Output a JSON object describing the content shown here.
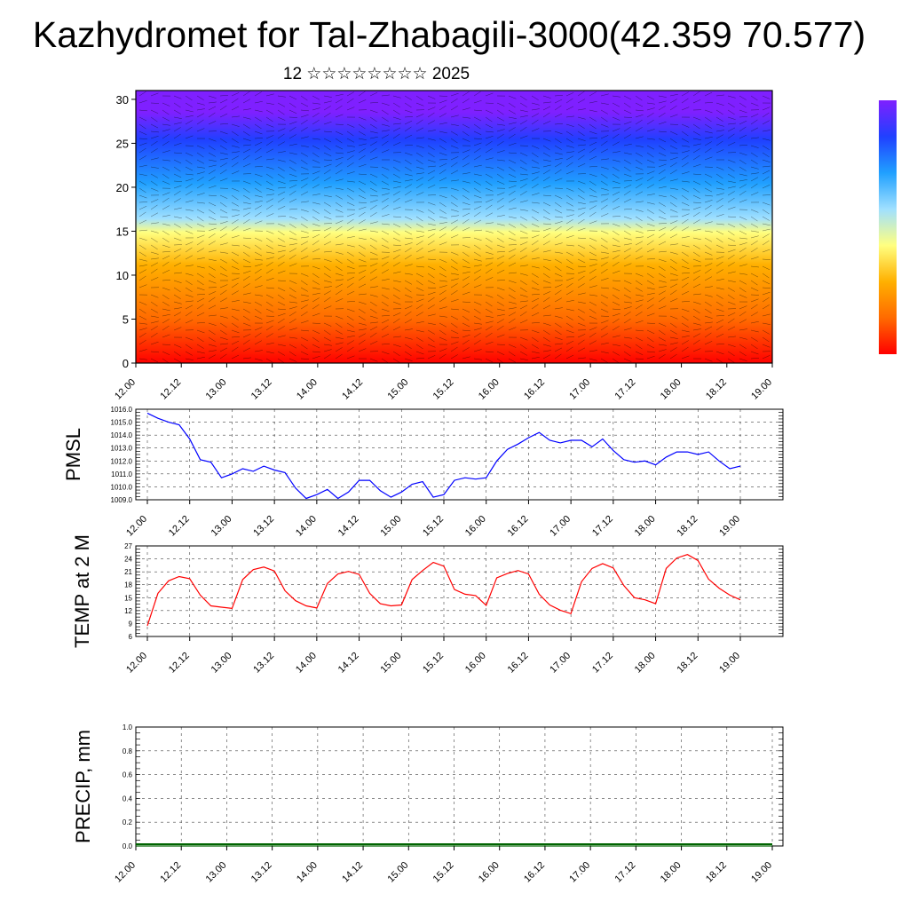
{
  "header": {
    "title": "Kazhydromet for Tal-Zhabagili-3000(42.359 70.577)",
    "subtitle": "12 ☆☆☆☆☆☆☆☆ 2025"
  },
  "colors": {
    "pmsl_line": "#0000ff",
    "temp_line": "#ff0000",
    "precip_baseline": "#006400",
    "colorbar": [
      "#ff0000",
      "#ff6a00",
      "#ffb000",
      "#ffff80",
      "#a0e0ff",
      "#20a0ff",
      "#2040ff",
      "#7f20ff"
    ]
  },
  "chart_data": [
    {
      "type": "heatmap",
      "name": "vertical cross-section with wind barbs",
      "y_ticks": [
        0,
        5,
        10,
        15,
        20,
        25,
        30
      ],
      "ylim": [
        0,
        31
      ],
      "x_tick_labels": [
        "12.00",
        "12.12",
        "13.00",
        "13.12",
        "14.00",
        "14.12",
        "15.00",
        "15.12",
        "16.00",
        "16.12",
        "17.00",
        "17.12",
        "18.00",
        "18.12",
        "19.00"
      ],
      "color_levels_bottom_to_top": [
        "red",
        "orange-red",
        "orange",
        "yellow",
        "light-blue",
        "sky-blue",
        "blue",
        "violet"
      ],
      "colorbar": true
    },
    {
      "type": "line",
      "ylabel": "PMSL",
      "ylim": [
        1009.0,
        1016.0
      ],
      "y_tick_labels": [
        "1009.0",
        "1010.0",
        "1011.0",
        "1012.0",
        "1013.0",
        "1014.0",
        "1015.0",
        "1016.0"
      ],
      "x_tick_labels": [
        "12.00",
        "12.12",
        "13.00",
        "13.12",
        "14.00",
        "14.12",
        "15.00",
        "15.12",
        "16.00",
        "16.12",
        "17.00",
        "17.12",
        "18.00",
        "18.12",
        "19.00"
      ],
      "values": [
        1015.7,
        1015.3,
        1015.0,
        1014.8,
        1013.7,
        1012.1,
        1011.9,
        1010.7,
        1011.0,
        1011.4,
        1011.2,
        1011.6,
        1011.3,
        1011.1,
        1009.9,
        1009.1,
        1009.4,
        1009.8,
        1009.1,
        1009.6,
        1010.5,
        1010.5,
        1009.7,
        1009.2,
        1009.6,
        1010.2,
        1010.4,
        1009.2,
        1009.4,
        1010.5,
        1010.7,
        1010.6,
        1010.7,
        1012.0,
        1012.9,
        1013.3,
        1013.8,
        1014.2,
        1013.6,
        1013.4,
        1013.6,
        1013.6,
        1013.1,
        1013.7,
        1012.8,
        1012.1,
        1011.9,
        1012.0,
        1011.7,
        1012.3,
        1012.7,
        1012.7,
        1012.5,
        1012.7,
        1012.0,
        1011.4,
        1011.6
      ]
    },
    {
      "type": "line",
      "ylabel": "TEMP at 2 M",
      "ylim": [
        6,
        27
      ],
      "y_tick_labels": [
        "6",
        "9",
        "12",
        "15",
        "18",
        "21",
        "24",
        "27"
      ],
      "x_tick_labels": [
        "12.00",
        "12.12",
        "13.00",
        "13.12",
        "14.00",
        "14.12",
        "15.00",
        "15.12",
        "16.00",
        "16.12",
        "17.00",
        "17.12",
        "18.00",
        "18.12",
        "19.00"
      ],
      "values": [
        8.5,
        16.0,
        18.9,
        19.9,
        19.4,
        15.6,
        13.1,
        12.8,
        12.5,
        19.2,
        21.5,
        22.1,
        21.2,
        16.6,
        14.3,
        13.1,
        12.6,
        18.3,
        20.5,
        21.1,
        20.4,
        16.0,
        13.6,
        13.1,
        13.3,
        19.2,
        21.3,
        23.2,
        22.3,
        16.9,
        15.8,
        15.5,
        13.2,
        19.6,
        20.6,
        21.3,
        20.5,
        15.8,
        13.3,
        12.1,
        11.3,
        18.7,
        21.8,
        22.9,
        21.9,
        17.8,
        15.0,
        14.5,
        13.6,
        21.8,
        24.2,
        25.0,
        23.6,
        19.3,
        17.2,
        15.6,
        14.5
      ]
    },
    {
      "type": "line",
      "ylabel": "PRECIP, mm",
      "ylim": [
        0.0,
        1.0
      ],
      "y_tick_labels": [
        "0.0",
        "0.2",
        "0.4",
        "0.6",
        "0.8",
        "1.0"
      ],
      "x_tick_labels": [
        "12.00",
        "12.12",
        "13.00",
        "13.12",
        "14.00",
        "14.12",
        "15.00",
        "15.12",
        "16.00",
        "16.12",
        "17.00",
        "17.12",
        "18.00",
        "18.12",
        "19.00"
      ],
      "values": [
        0,
        0,
        0,
        0,
        0,
        0,
        0,
        0,
        0,
        0,
        0,
        0,
        0,
        0,
        0,
        0,
        0,
        0,
        0,
        0,
        0,
        0,
        0,
        0,
        0,
        0,
        0,
        0,
        0,
        0,
        0,
        0,
        0,
        0,
        0,
        0,
        0,
        0,
        0,
        0,
        0,
        0,
        0,
        0,
        0,
        0,
        0,
        0,
        0,
        0,
        0,
        0,
        0,
        0,
        0,
        0,
        0
      ]
    }
  ]
}
